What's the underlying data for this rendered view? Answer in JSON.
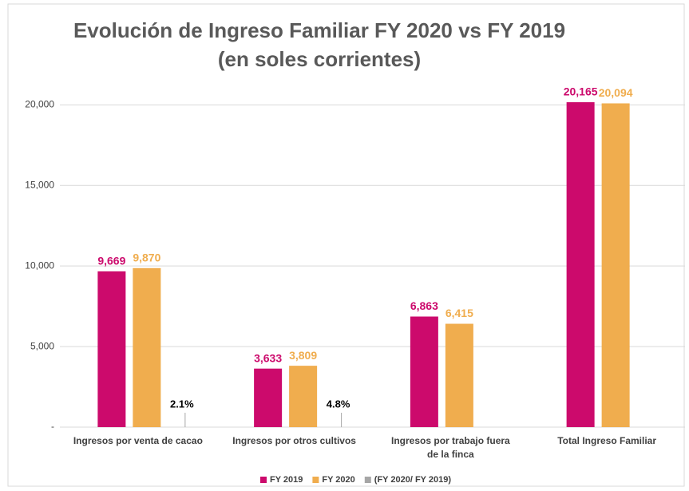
{
  "chart_data": {
    "type": "bar",
    "title": "Evolución de Ingreso Familiar FY 2020 vs FY 2019",
    "subtitle": "(en soles corrientes)",
    "categories": [
      "Ingresos por venta de cacao",
      "Ingresos por otros cultivos",
      "Ingresos por trabajo fuera de la finca",
      "Total Ingreso Familiar"
    ],
    "series": [
      {
        "name": "FY 2019",
        "color": "#cc0a6c",
        "values": [
          9669,
          3633,
          6863,
          20165
        ],
        "value_labels": [
          "9,669",
          "3,633",
          "6,863",
          "20,165"
        ]
      },
      {
        "name": "FY 2020",
        "color": "#f0ad4e",
        "values": [
          9870,
          3809,
          6415,
          20094
        ],
        "value_labels": [
          "9,870",
          "3,809",
          "6,415",
          "20,094"
        ]
      },
      {
        "name": "(FY 2020/ FY 2019)",
        "color": "#a6a6a6",
        "values": [
          0.021,
          0.048,
          null,
          null
        ],
        "value_labels": [
          "2.1%",
          "4.8%",
          null,
          null
        ]
      }
    ],
    "ylim": [
      0,
      22000
    ],
    "yticks": [
      {
        "value": 0,
        "label": "-"
      },
      {
        "value": 5000,
        "label": "5,000"
      },
      {
        "value": 10000,
        "label": "10,000"
      },
      {
        "value": 15000,
        "label": "15,000"
      },
      {
        "value": 20000,
        "label": "20,000"
      }
    ],
    "grid": true,
    "legend": "bottom"
  }
}
